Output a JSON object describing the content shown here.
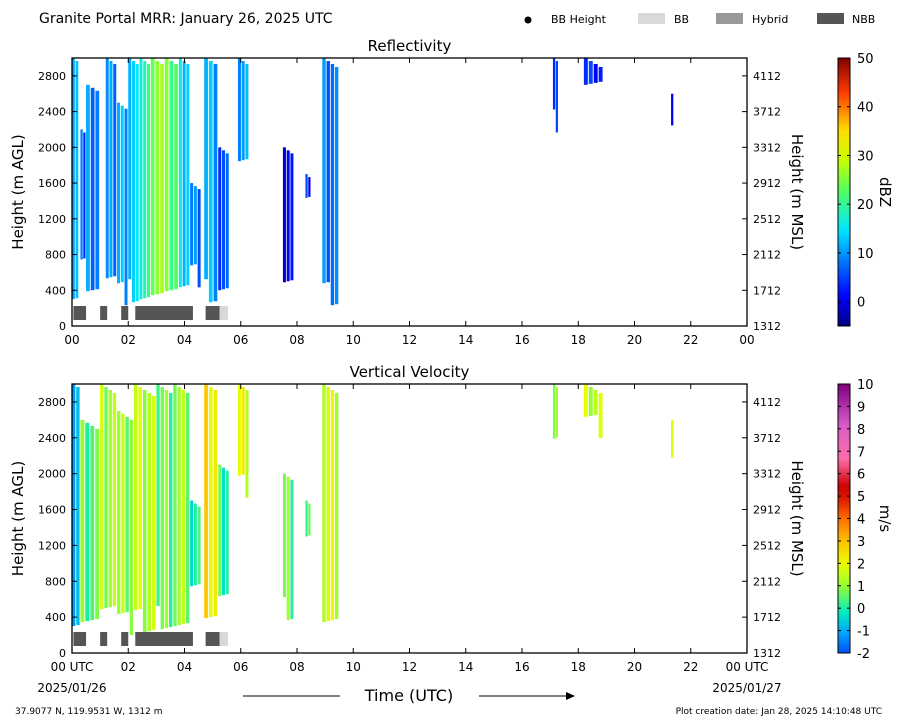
{
  "figure": {
    "title": "Granite Portal MRR:  January 26, 2025 UTC",
    "xlabel": "Time (UTC)",
    "start_date": "2025/01/26",
    "end_date": "2025/01/27",
    "location": "37.9077 N, 119.9531 W, 1312 m",
    "creation_date": "Plot creation date: Jan 28, 2025 14:10:48 UTC"
  },
  "legend": {
    "items": [
      {
        "label": "BB Height",
        "marker": "dot",
        "color": "#000000"
      },
      {
        "label": "BB",
        "marker": "rect",
        "color": "#d9d9d9"
      },
      {
        "label": "Hybrid",
        "marker": "rect",
        "color": "#999999"
      },
      {
        "label": "NBB",
        "marker": "rect",
        "color": "#555555"
      }
    ]
  },
  "chart_data": [
    {
      "type": "heatmap",
      "title": "Reflectivity",
      "ylabel": "Height (m AGL)",
      "ylabel_right": "Height (m MSL)",
      "xlim": [
        0,
        24
      ],
      "x_ticks": [
        "00",
        "02",
        "04",
        "06",
        "08",
        "10",
        "12",
        "14",
        "16",
        "18",
        "20",
        "22",
        "00"
      ],
      "ylim": [
        0,
        3000
      ],
      "y_ticks": [
        "0",
        "400",
        "800",
        "1200",
        "1600",
        "2000",
        "2400",
        "2800"
      ],
      "y_ticks_right": [
        "1312",
        "1712",
        "2112",
        "2512",
        "2912",
        "3312",
        "3712",
        "4112"
      ],
      "colorbar": {
        "label": "dBZ",
        "min": -5,
        "max": 50,
        "ticks": [
          "0",
          "10",
          "20",
          "30",
          "40",
          "50"
        ],
        "tick_values": [
          0,
          10,
          20,
          30,
          40,
          50
        ]
      },
      "regions": [
        {
          "x": [
            0.0,
            0.25
          ],
          "y": [
            300,
            3000
          ],
          "value": 14
        },
        {
          "x": [
            0.3,
            0.5
          ],
          "y": [
            700,
            2200
          ],
          "value": 6
        },
        {
          "x": [
            0.5,
            1.0
          ],
          "y": [
            300,
            2700
          ],
          "value": 10
        },
        {
          "x": [
            1.2,
            1.6
          ],
          "y": [
            400,
            3000
          ],
          "value": 9
        },
        {
          "x": [
            1.6,
            2.0
          ],
          "y": [
            300,
            2500
          ],
          "value": 12
        },
        {
          "x": [
            2.0,
            2.4
          ],
          "y": [
            300,
            3000
          ],
          "value": 13
        },
        {
          "x": [
            2.4,
            2.8
          ],
          "y": [
            300,
            3000
          ],
          "value": 19
        },
        {
          "x": [
            2.8,
            3.3
          ],
          "y": [
            300,
            3000
          ],
          "value": 27
        },
        {
          "x": [
            3.3,
            3.8
          ],
          "y": [
            300,
            3000
          ],
          "value": 23
        },
        {
          "x": [
            3.8,
            4.2
          ],
          "y": [
            300,
            3000
          ],
          "value": 15
        },
        {
          "x": [
            4.2,
            4.6
          ],
          "y": [
            500,
            1600
          ],
          "value": 8
        },
        {
          "x": [
            4.7,
            5.2
          ],
          "y": [
            300,
            3000
          ],
          "value": 12
        },
        {
          "x": [
            5.2,
            5.6
          ],
          "y": [
            400,
            2000
          ],
          "value": 5
        },
        {
          "x": [
            5.9,
            6.3
          ],
          "y": [
            1800,
            3000
          ],
          "value": 11
        },
        {
          "x": [
            7.5,
            7.9
          ],
          "y": [
            400,
            2000
          ],
          "value": 2
        },
        {
          "x": [
            8.3,
            8.5
          ],
          "y": [
            1300,
            1700
          ],
          "value": 3
        },
        {
          "x": [
            8.9,
            9.5
          ],
          "y": [
            300,
            3000
          ],
          "value": 9
        },
        {
          "x": [
            17.1,
            17.3
          ],
          "y": [
            2200,
            3000
          ],
          "value": 3
        },
        {
          "x": [
            18.2,
            18.9
          ],
          "y": [
            2700,
            3000
          ],
          "value": 4
        },
        {
          "x": [
            21.3,
            21.4
          ],
          "y": [
            2200,
            2600
          ],
          "value": 2
        }
      ],
      "bb_bars": [
        {
          "x": [
            0.05,
            0.5
          ],
          "kind": "NBB"
        },
        {
          "x": [
            1.0,
            1.25
          ],
          "kind": "NBB"
        },
        {
          "x": [
            1.75,
            2.0
          ],
          "kind": "NBB"
        },
        {
          "x": [
            2.25,
            4.3
          ],
          "kind": "NBB"
        },
        {
          "x": [
            4.75,
            5.25
          ],
          "kind": "NBB"
        },
        {
          "x": [
            5.25,
            5.55
          ],
          "kind": "BB"
        }
      ]
    },
    {
      "type": "heatmap",
      "title": "Vertical Velocity",
      "ylabel": "Height (m AGL)",
      "ylabel_right": "Height (m MSL)",
      "xlim": [
        0,
        24
      ],
      "x_ticks": [
        "00 UTC",
        "02",
        "04",
        "06",
        "08",
        "10",
        "12",
        "14",
        "16",
        "18",
        "20",
        "22",
        "00 UTC"
      ],
      "ylim": [
        0,
        3000
      ],
      "y_ticks": [
        "0",
        "400",
        "800",
        "1200",
        "1600",
        "2000",
        "2400",
        "2800"
      ],
      "y_ticks_right": [
        "1312",
        "1712",
        "2112",
        "2512",
        "2912",
        "3312",
        "3712",
        "4112"
      ],
      "colorbar": {
        "label": "m/s",
        "min": -2,
        "max": 10,
        "ticks": [
          "-2",
          "-1",
          "0",
          "1",
          "2",
          "3",
          "4",
          "5",
          "6",
          "7",
          "8",
          "9",
          "10"
        ],
        "tick_values": [
          -2,
          -1,
          0,
          1,
          2,
          3,
          4,
          5,
          6,
          7,
          8,
          9,
          10
        ]
      },
      "regions": [
        {
          "x": [
            0.0,
            0.3
          ],
          "y": [
            300,
            3000
          ],
          "value": -0.5
        },
        {
          "x": [
            0.3,
            1.0
          ],
          "y": [
            300,
            2600
          ],
          "value": 0.5
        },
        {
          "x": [
            1.0,
            1.6
          ],
          "y": [
            400,
            3000
          ],
          "value": 1.4
        },
        {
          "x": [
            1.6,
            2.2
          ],
          "y": [
            300,
            2700
          ],
          "value": 1.0
        },
        {
          "x": [
            2.2,
            3.0
          ],
          "y": [
            300,
            3000
          ],
          "value": 1.6
        },
        {
          "x": [
            3.0,
            3.6
          ],
          "y": [
            300,
            3000
          ],
          "value": 0.6
        },
        {
          "x": [
            3.6,
            4.2
          ],
          "y": [
            300,
            3000
          ],
          "value": 1.2
        },
        {
          "x": [
            4.2,
            4.6
          ],
          "y": [
            700,
            1700
          ],
          "value": 0.3
        },
        {
          "x": [
            4.7,
            5.2
          ],
          "y": [
            300,
            3000
          ],
          "value": 2.4
        },
        {
          "x": [
            5.2,
            5.6
          ],
          "y": [
            500,
            2100
          ],
          "value": 0.4
        },
        {
          "x": [
            5.9,
            6.3
          ],
          "y": [
            1800,
            3000
          ],
          "value": 1.8
        },
        {
          "x": [
            7.5,
            7.9
          ],
          "y": [
            400,
            2000
          ],
          "value": 0.8
        },
        {
          "x": [
            8.3,
            8.5
          ],
          "y": [
            1300,
            1700
          ],
          "value": 0.5
        },
        {
          "x": [
            8.9,
            9.5
          ],
          "y": [
            300,
            3000
          ],
          "value": 1.8
        },
        {
          "x": [
            17.1,
            17.3
          ],
          "y": [
            2300,
            3000
          ],
          "value": 1.5
        },
        {
          "x": [
            18.2,
            18.9
          ],
          "y": [
            2500,
            3000
          ],
          "value": 1.5
        },
        {
          "x": [
            21.3,
            21.4
          ],
          "y": [
            2000,
            2600
          ],
          "value": 1.5
        }
      ],
      "bb_bars": [
        {
          "x": [
            0.05,
            0.5
          ],
          "kind": "NBB"
        },
        {
          "x": [
            1.0,
            1.25
          ],
          "kind": "NBB"
        },
        {
          "x": [
            1.75,
            2.0
          ],
          "kind": "NBB"
        },
        {
          "x": [
            2.25,
            4.3
          ],
          "kind": "NBB"
        },
        {
          "x": [
            4.75,
            5.25
          ],
          "kind": "NBB"
        },
        {
          "x": [
            5.25,
            5.55
          ],
          "kind": "BB"
        }
      ]
    }
  ]
}
